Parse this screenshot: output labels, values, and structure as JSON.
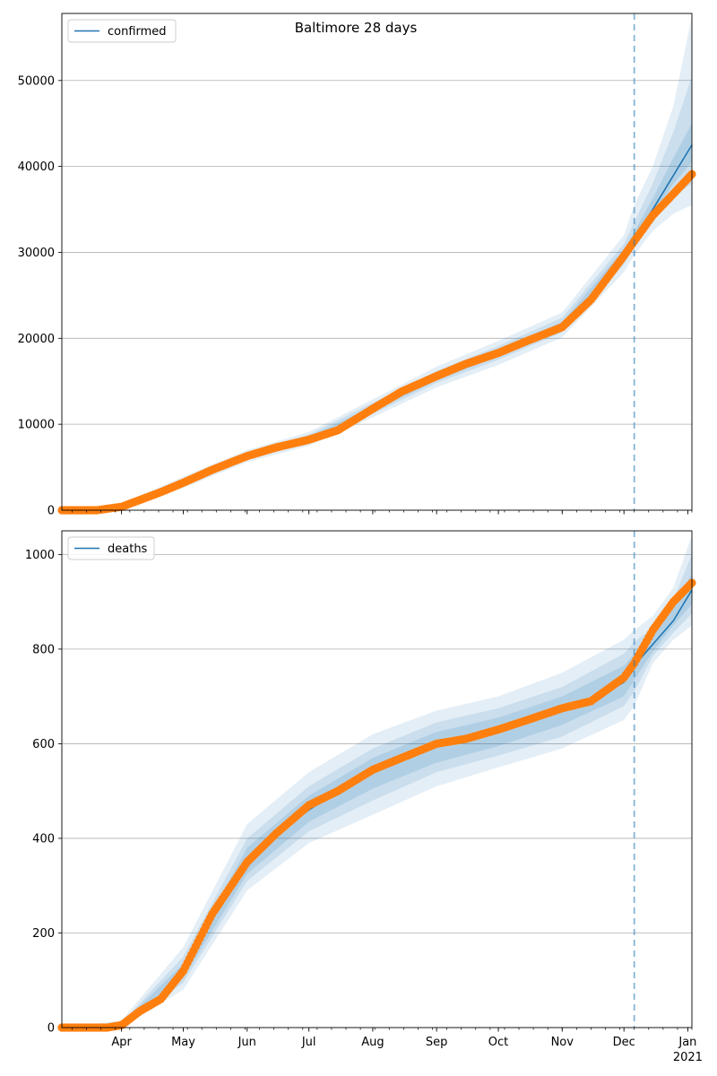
{
  "figure": {
    "title": "Baltimore 28 days"
  },
  "chart_data": [
    {
      "type": "line",
      "title": "Baltimore 28 days",
      "legend": {
        "placement": "top-left",
        "label": "confirmed"
      },
      "grid": "horizontal",
      "ylim": [
        0,
        57800
      ],
      "yticks": [
        0,
        10000,
        20000,
        30000,
        40000,
        50000
      ],
      "xlim": [
        "2020-03-03",
        "2021-01-03"
      ],
      "forecast_start": "2020-12-06",
      "series": [
        {
          "name": "confirmed",
          "role": "model",
          "color": "#1f77b4",
          "x": [
            "2020-03-03",
            "2020-03-20",
            "2020-04-01",
            "2020-04-15",
            "2020-05-01",
            "2020-05-15",
            "2020-06-01",
            "2020-06-15",
            "2020-07-01",
            "2020-07-15",
            "2020-08-01",
            "2020-08-15",
            "2020-09-01",
            "2020-09-15",
            "2020-10-01",
            "2020-10-15",
            "2020-11-01",
            "2020-11-15",
            "2020-12-01",
            "2020-12-06",
            "2020-12-15",
            "2021-01-03"
          ],
          "y": [
            0,
            0,
            400,
            1700,
            3200,
            4700,
            6300,
            7300,
            8300,
            9300,
            11800,
            13700,
            15500,
            17000,
            18300,
            19700,
            21500,
            24500,
            29800,
            31700,
            35000,
            42500
          ]
        },
        {
          "name": "observed",
          "role": "observed",
          "color": "#ff7f0e",
          "x": [
            "2020-03-03",
            "2020-03-20",
            "2020-04-01",
            "2020-04-10",
            "2020-04-20",
            "2020-05-01",
            "2020-05-15",
            "2020-06-01",
            "2020-06-15",
            "2020-07-01",
            "2020-07-15",
            "2020-08-01",
            "2020-08-15",
            "2020-09-01",
            "2020-09-15",
            "2020-10-01",
            "2020-10-15",
            "2020-11-01",
            "2020-11-15",
            "2020-12-01",
            "2020-12-06",
            "2020-12-15",
            "2020-12-25",
            "2021-01-03"
          ],
          "y": [
            0,
            0,
            400,
            1200,
            2100,
            3200,
            4700,
            6300,
            7300,
            8200,
            9300,
            11800,
            13800,
            15600,
            17000,
            18300,
            19700,
            21300,
            24500,
            29600,
            31300,
            34300,
            36800,
            39100
          ]
        }
      ],
      "bands": {
        "x": [
          "2020-03-03",
          "2020-04-01",
          "2020-05-01",
          "2020-06-01",
          "2020-07-01",
          "2020-08-01",
          "2020-09-01",
          "2020-10-01",
          "2020-11-01",
          "2020-12-01",
          "2020-12-06",
          "2020-12-15",
          "2020-12-25",
          "2021-01-03"
        ],
        "outer_low": [
          0,
          200,
          2600,
          5600,
          7500,
          10800,
          14300,
          16900,
          20100,
          27700,
          29700,
          32500,
          34500,
          35500
        ],
        "outer_high": [
          0,
          700,
          3900,
          7000,
          9100,
          12900,
          16700,
          19700,
          23000,
          32000,
          35500,
          40000,
          47000,
          57500
        ],
        "mid_low": [
          0,
          300,
          2800,
          5900,
          7800,
          11200,
          14800,
          17500,
          20700,
          28600,
          30600,
          33500,
          36500,
          38000
        ],
        "mid_high": [
          0,
          550,
          3600,
          6700,
          8800,
          12500,
          16200,
          19100,
          22400,
          31000,
          33500,
          38000,
          44000,
          50500
        ],
        "inner_low": [
          0,
          350,
          3000,
          6100,
          8050,
          11500,
          15100,
          17900,
          21100,
          29200,
          31200,
          34300,
          38000,
          40500
        ],
        "inner_high": [
          0,
          450,
          3400,
          6500,
          8550,
          12100,
          15900,
          18700,
          21900,
          30400,
          32400,
          36300,
          41000,
          45000
        ]
      }
    },
    {
      "type": "line",
      "legend": {
        "placement": "top-left",
        "label": "deaths"
      },
      "grid": "horizontal",
      "ylim": [
        0,
        1050
      ],
      "yticks": [
        0,
        200,
        400,
        600,
        800,
        1000
      ],
      "xlim": [
        "2020-03-03",
        "2021-01-03"
      ],
      "xticks": [
        {
          "date": "2020-04-01",
          "label": "Apr"
        },
        {
          "date": "2020-05-01",
          "label": "May"
        },
        {
          "date": "2020-06-01",
          "label": "Jun"
        },
        {
          "date": "2020-07-01",
          "label": "Jul"
        },
        {
          "date": "2020-08-01",
          "label": "Aug"
        },
        {
          "date": "2020-09-01",
          "label": "Sep"
        },
        {
          "date": "2020-10-01",
          "label": "Oct"
        },
        {
          "date": "2020-11-01",
          "label": "Nov"
        },
        {
          "date": "2020-12-01",
          "label": "Dec"
        },
        {
          "date": "2021-01-01",
          "label": "Jan"
        }
      ],
      "xtick_year_label": "2021",
      "forecast_start": "2020-12-06",
      "series": [
        {
          "name": "deaths",
          "role": "model",
          "color": "#1f77b4",
          "x": [
            "2020-03-03",
            "2020-03-25",
            "2020-04-01",
            "2020-04-15",
            "2020-05-01",
            "2020-05-15",
            "2020-06-01",
            "2020-06-15",
            "2020-07-01",
            "2020-07-15",
            "2020-08-01",
            "2020-08-15",
            "2020-09-01",
            "2020-09-15",
            "2020-10-01",
            "2020-10-15",
            "2020-11-01",
            "2020-11-15",
            "2020-12-01",
            "2020-12-06",
            "2020-12-15",
            "2020-12-25",
            "2021-01-03"
          ],
          "y": [
            0,
            0,
            5,
            40,
            120,
            240,
            350,
            410,
            460,
            500,
            540,
            565,
            595,
            610,
            625,
            645,
            670,
            690,
            730,
            765,
            810,
            860,
            925
          ]
        },
        {
          "name": "observed",
          "role": "observed",
          "color": "#ff7f0e",
          "x": [
            "2020-03-03",
            "2020-03-25",
            "2020-04-01",
            "2020-04-10",
            "2020-04-20",
            "2020-05-01",
            "2020-05-15",
            "2020-06-01",
            "2020-06-15",
            "2020-07-01",
            "2020-07-15",
            "2020-08-01",
            "2020-08-15",
            "2020-09-01",
            "2020-09-15",
            "2020-10-01",
            "2020-10-15",
            "2020-11-01",
            "2020-11-15",
            "2020-12-01",
            "2020-12-06",
            "2020-12-15",
            "2020-12-25",
            "2021-01-03"
          ],
          "y": [
            0,
            0,
            5,
            35,
            60,
            120,
            240,
            350,
            410,
            470,
            500,
            545,
            570,
            600,
            610,
            630,
            650,
            675,
            690,
            740,
            770,
            840,
            900,
            940
          ]
        }
      ],
      "bands": {
        "x": [
          "2020-03-03",
          "2020-04-01",
          "2020-05-01",
          "2020-06-01",
          "2020-07-01",
          "2020-08-01",
          "2020-09-01",
          "2020-10-01",
          "2020-11-01",
          "2020-12-01",
          "2020-12-06",
          "2020-12-15",
          "2020-12-25",
          "2021-01-03"
        ],
        "outer_low": [
          0,
          0,
          80,
          290,
          390,
          450,
          510,
          550,
          590,
          650,
          680,
          770,
          820,
          850
        ],
        "outer_high": [
          0,
          15,
          170,
          430,
          540,
          620,
          670,
          700,
          750,
          820,
          840,
          870,
          930,
          1040
        ],
        "mid_low": [
          0,
          1,
          95,
          310,
          415,
          480,
          540,
          575,
          615,
          680,
          710,
          785,
          835,
          875
        ],
        "mid_high": [
          0,
          10,
          150,
          400,
          510,
          590,
          645,
          675,
          720,
          790,
          815,
          845,
          905,
          1000
        ],
        "inner_low": [
          0,
          2,
          105,
          325,
          435,
          505,
          560,
          595,
          640,
          700,
          735,
          795,
          850,
          895
        ],
        "inner_high": [
          0,
          8,
          135,
          380,
          490,
          570,
          625,
          655,
          700,
          765,
          790,
          830,
          885,
          960
        ]
      }
    }
  ]
}
